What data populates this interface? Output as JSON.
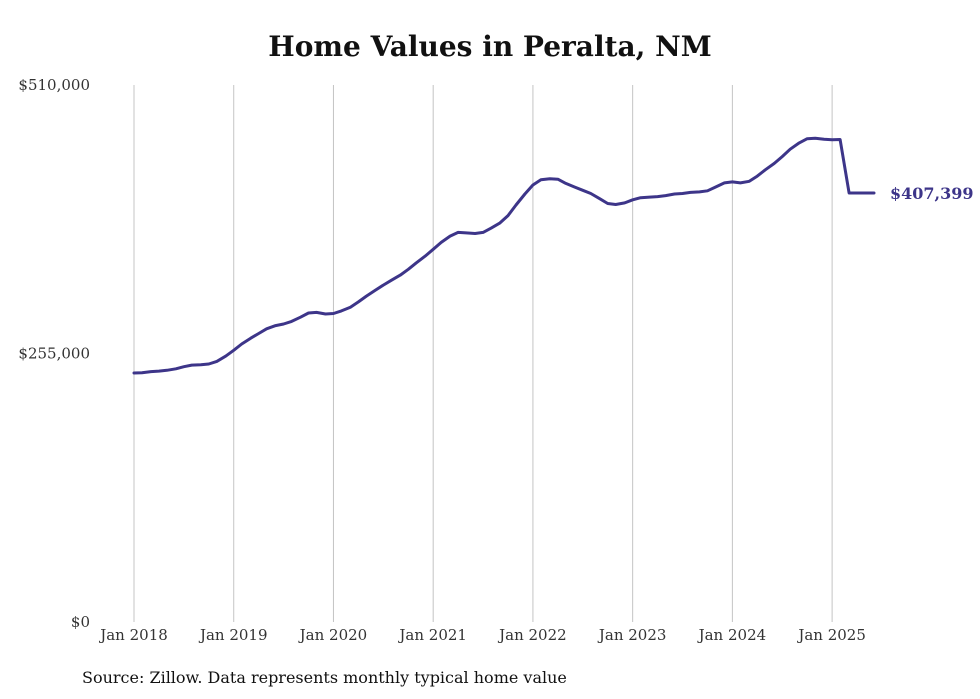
{
  "chart_data": {
    "type": "line",
    "title": "Home Values in Peralta, NM",
    "source": "Source: Zillow. Data represents monthly typical home value",
    "xlabel": "",
    "ylabel": "",
    "ylim": [
      0,
      510000
    ],
    "y_ticks": [
      {
        "value": 0,
        "label": "$0"
      },
      {
        "value": 255000,
        "label": "$255,000"
      },
      {
        "value": 510000,
        "label": "$510,000"
      }
    ],
    "x_ticks": [
      {
        "value": 2018,
        "label": "Jan 2018"
      },
      {
        "value": 2019,
        "label": "Jan 2019"
      },
      {
        "value": 2020,
        "label": "Jan 2020"
      },
      {
        "value": 2021,
        "label": "Jan 2021"
      },
      {
        "value": 2022,
        "label": "Jan 2022"
      },
      {
        "value": 2023,
        "label": "Jan 2023"
      },
      {
        "value": 2024,
        "label": "Jan 2024"
      },
      {
        "value": 2025,
        "label": "Jan 2025"
      }
    ],
    "xlim": [
      2018,
      2025.42
    ],
    "grid": "vertical",
    "line_color": "#3d3589",
    "end_label": "$407,399",
    "series": [
      {
        "x": [
          2018.0,
          2018.08,
          2018.17,
          2018.25,
          2018.33,
          2018.42,
          2018.5,
          2018.58,
          2018.67,
          2018.75,
          2018.83,
          2018.92,
          2019.0,
          2019.08,
          2019.17,
          2019.25,
          2019.33,
          2019.42,
          2019.5,
          2019.58,
          2019.67,
          2019.75,
          2019.83,
          2019.92,
          2020.0,
          2020.08,
          2020.17,
          2020.25,
          2020.33,
          2020.42,
          2020.5,
          2020.58,
          2020.67,
          2020.75,
          2020.83,
          2020.92,
          2021.0,
          2021.08,
          2021.17,
          2021.25,
          2021.33,
          2021.42,
          2021.5,
          2021.58,
          2021.67,
          2021.75,
          2021.83,
          2021.92,
          2022.0,
          2022.08,
          2022.17,
          2022.25,
          2022.33,
          2022.42,
          2022.5,
          2022.58,
          2022.67,
          2022.75,
          2022.83,
          2022.92,
          2023.0,
          2023.08,
          2023.17,
          2023.25,
          2023.33,
          2023.42,
          2023.5,
          2023.58,
          2023.67,
          2023.75,
          2023.83,
          2023.92,
          2024.0,
          2024.08,
          2024.17,
          2024.25,
          2024.33,
          2024.42,
          2024.5,
          2024.58,
          2024.67,
          2024.75,
          2024.83,
          2024.92,
          2025.0,
          2025.08,
          2025.17,
          2025.25,
          2025.33,
          2025.42
        ],
        "y": [
          236500,
          236800,
          237800,
          238300,
          239000,
          240500,
          242500,
          244000,
          244300,
          245000,
          247500,
          252500,
          258000,
          264000,
          269500,
          274000,
          278500,
          281500,
          283000,
          285500,
          289500,
          293500,
          294000,
          292500,
          293000,
          295500,
          299000,
          304000,
          309500,
          315000,
          320000,
          324500,
          329500,
          335000,
          341000,
          347500,
          354000,
          360500,
          366500,
          370000,
          369500,
          369000,
          370000,
          374000,
          379000,
          386000,
          396000,
          406500,
          415000,
          420000,
          421000,
          420500,
          416500,
          413000,
          410000,
          407000,
          402000,
          397500,
          396500,
          398000,
          401000,
          403000,
          403500,
          404000,
          405000,
          406500,
          407000,
          408000,
          408500,
          409500,
          413000,
          417000,
          418000,
          417000,
          418500,
          423500,
          429500,
          435500,
          442000,
          449000,
          455000,
          459000,
          459500,
          458500,
          458000,
          458200,
          407399,
          407399,
          407399,
          407399
        ]
      }
    ]
  }
}
